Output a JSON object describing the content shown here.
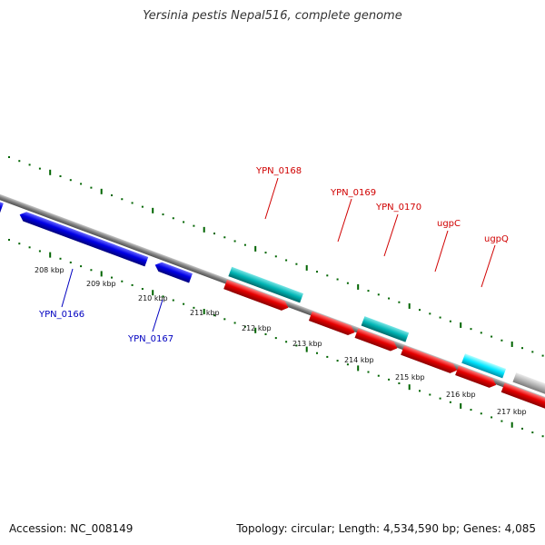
{
  "title": "Yersinia pestis Nepal516, complete genome",
  "footer": {
    "accession": "Accession: NC_008149",
    "summary": "Topology: circular; Length: 4,534,590 bp; Genes: 4,085"
  },
  "colors": {
    "forward_cds": "#00b4b4",
    "forward_cds_bright": "#00e6ff",
    "reverse_cds": "#e60000",
    "blue_cds": "#0000e6",
    "grey_feature": "#b4b4b4",
    "backbone": "#808080",
    "ticks": "#006400",
    "label_red": "#d00000",
    "label_blue": "#0000c0"
  },
  "scale": {
    "unit": "kbp",
    "tick_labels": [
      "208 kbp",
      "209 kbp",
      "210 kbp",
      "211 kbp",
      "212 kbp",
      "213 kbp",
      "214 kbp",
      "215 kbp",
      "216 kbp",
      "217 kbp"
    ]
  },
  "gene_labels": [
    {
      "text": "YPN_0166",
      "color": "label_blue"
    },
    {
      "text": "YPN_0167",
      "color": "label_blue"
    },
    {
      "text": "YPN_0168",
      "color": "label_red"
    },
    {
      "text": "YPN_0169",
      "color": "label_red"
    },
    {
      "text": "YPN_0170",
      "color": "label_red"
    },
    {
      "text": "ugpC",
      "color": "label_red"
    },
    {
      "text": "ugpQ",
      "color": "label_red"
    }
  ]
}
